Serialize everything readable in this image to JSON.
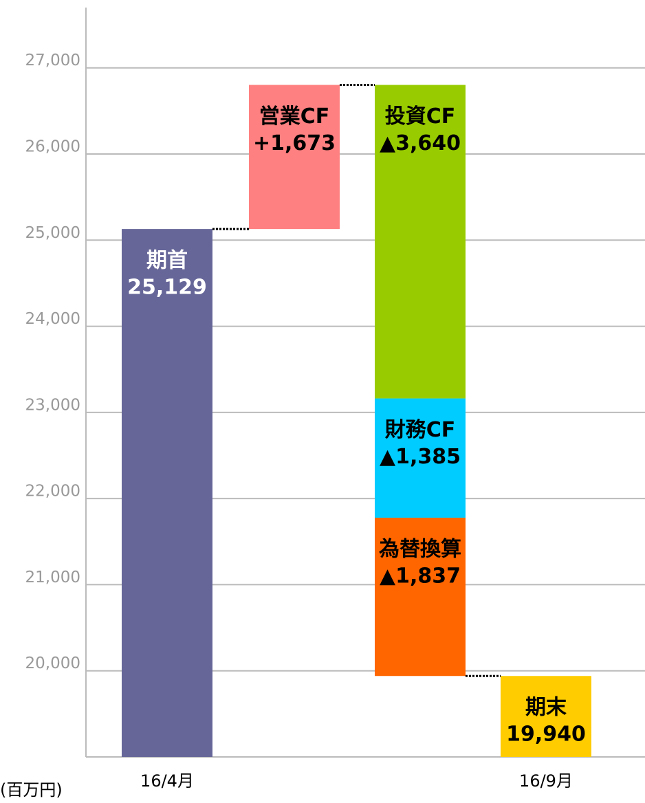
{
  "chart_data": {
    "type": "waterfall",
    "categories": [
      "期首",
      "営業CF",
      "投資CF",
      "財務CF",
      "為替換算",
      "期末"
    ],
    "values": [
      25129,
      1673,
      -3640,
      -1385,
      -1837,
      19940
    ],
    "value_labels": [
      "25,129",
      "+1,673",
      "▲3,640",
      "▲1,385",
      "▲1,837",
      "19,940"
    ],
    "measures": [
      "absolute",
      "relative",
      "relative",
      "relative",
      "relative",
      "total"
    ],
    "colors": [
      "#666699",
      "#ff8080",
      "#99cc00",
      "#00ccff",
      "#ff6600",
      "#ffcc00"
    ],
    "label_colors": [
      "#ffffff",
      "#000000",
      "#000000",
      "#000000",
      "#000000",
      "#000000"
    ],
    "x_labels": [
      "16/4月",
      "16/9月"
    ],
    "unit_label": "(百万円)",
    "ylim": [
      19000,
      27700
    ],
    "yticks": [
      {
        "value": 20000,
        "label": "20,000"
      },
      {
        "value": 21000,
        "label": "21,000"
      },
      {
        "value": 22000,
        "label": "22,000"
      },
      {
        "value": 23000,
        "label": "23,000"
      },
      {
        "value": 24000,
        "label": "24,000"
      },
      {
        "value": 25000,
        "label": "25,000"
      },
      {
        "value": 26000,
        "label": "26,000"
      },
      {
        "value": 27000,
        "label": "27,000"
      }
    ],
    "grid": true
  }
}
